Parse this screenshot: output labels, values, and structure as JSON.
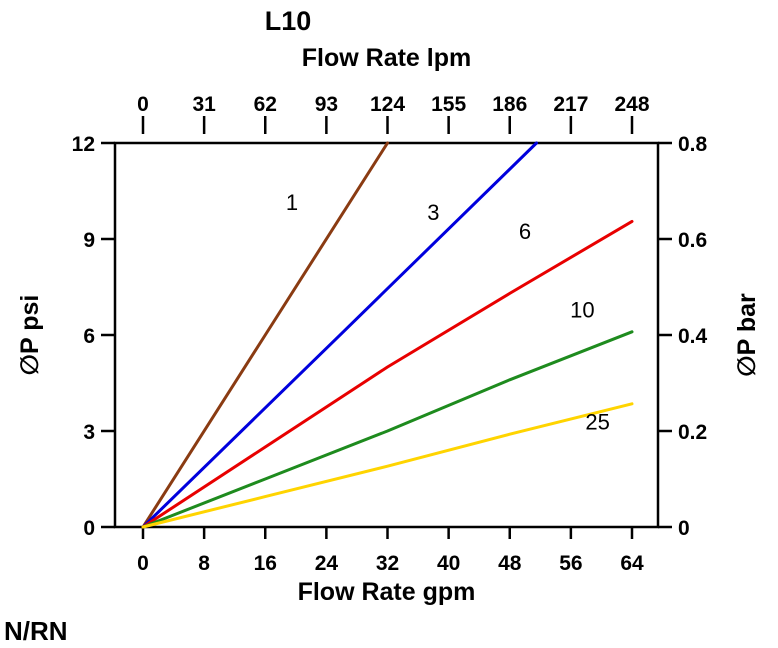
{
  "chart_data": {
    "type": "line",
    "title": "L10",
    "footer": "N/RN",
    "grid": false,
    "legend": "inline-labels-on-lines",
    "axes": {
      "top": {
        "label": "Flow Rate lpm",
        "ticks": [
          0,
          31,
          62,
          93,
          124,
          155,
          186,
          217,
          248
        ],
        "range": [
          0,
          248
        ]
      },
      "bottom": {
        "label": "Flow Rate gpm",
        "ticks": [
          0,
          8,
          16,
          24,
          32,
          40,
          48,
          56,
          64
        ],
        "range": [
          0,
          64
        ]
      },
      "left": {
        "label": "∅P psi",
        "ticks": [
          0,
          3,
          6,
          9,
          12
        ],
        "range": [
          0,
          12
        ]
      },
      "right": {
        "label": "∅P bar",
        "ticks": [
          0,
          0.2,
          0.4,
          0.6,
          0.8
        ],
        "range": [
          0,
          0.8
        ]
      }
    },
    "series": [
      {
        "name": "1",
        "color": "#8a3b12",
        "points": [
          [
            0,
            0
          ],
          [
            16,
            6.0
          ],
          [
            32,
            12
          ]
        ],
        "label_at": [
          19.5,
          9.9
        ]
      },
      {
        "name": "3",
        "color": "#0000dd",
        "points": [
          [
            0,
            0
          ],
          [
            26,
            6.05
          ],
          [
            51.5,
            12
          ]
        ],
        "label_at": [
          38,
          9.6
        ]
      },
      {
        "name": "6",
        "color": "#e80000",
        "points": [
          [
            0,
            0
          ],
          [
            16,
            2.5
          ],
          [
            32,
            5.0
          ],
          [
            48,
            7.3
          ],
          [
            64,
            9.55
          ]
        ],
        "label_at": [
          50,
          9.0
        ]
      },
      {
        "name": "10",
        "color": "#1e8b1e",
        "points": [
          [
            0,
            0
          ],
          [
            16,
            1.5
          ],
          [
            32,
            3.0
          ],
          [
            48,
            4.6
          ],
          [
            64,
            6.1
          ]
        ],
        "label_at": [
          57.5,
          6.55
        ]
      },
      {
        "name": "25",
        "color": "#ffd400",
        "points": [
          [
            0,
            0
          ],
          [
            16,
            0.95
          ],
          [
            32,
            1.9
          ],
          [
            48,
            2.9
          ],
          [
            64,
            3.85
          ]
        ],
        "label_at": [
          59.5,
          3.05
        ]
      }
    ]
  }
}
